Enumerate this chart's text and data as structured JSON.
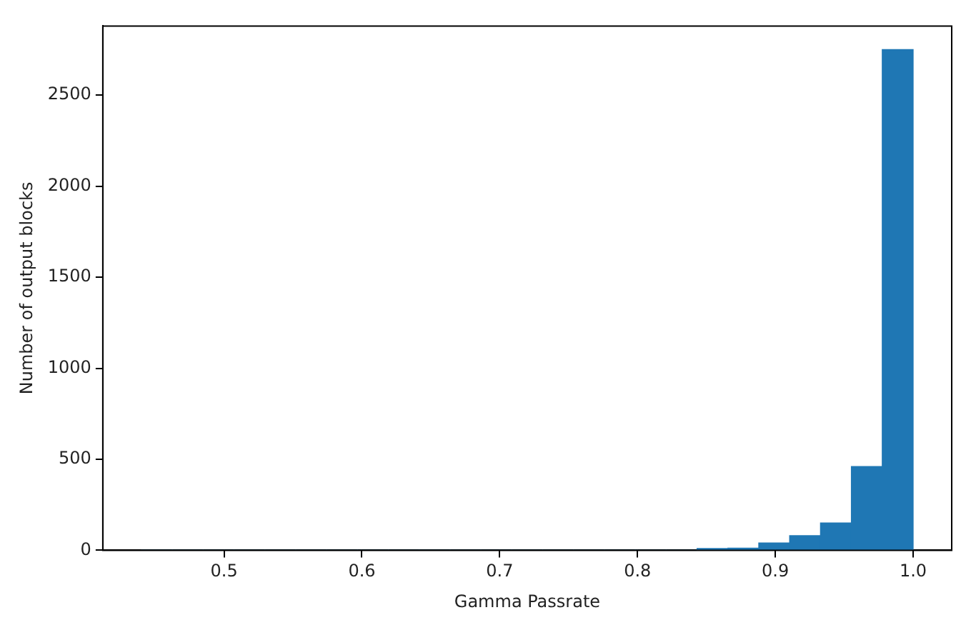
{
  "chart_data": {
    "type": "histogram",
    "xlabel": "Gamma Passrate",
    "ylabel": "Number of output blocks",
    "bins": [
      0.44,
      0.4624,
      0.4848,
      0.5072,
      0.5296,
      0.552,
      0.5744,
      0.5968,
      0.6192,
      0.6416,
      0.664,
      0.6864,
      0.7088,
      0.7312,
      0.7536,
      0.776,
      0.7984,
      0.8208,
      0.8432,
      0.8656,
      0.888,
      0.9104,
      0.9328,
      0.9552,
      0.9776,
      1.0
    ],
    "values": [
      0,
      0,
      0,
      0,
      0,
      0,
      0,
      0,
      0,
      0,
      0,
      0,
      0,
      0,
      0,
      0,
      0,
      0,
      10,
      12,
      40,
      80,
      150,
      460,
      2750
    ],
    "color": "#1f77b4",
    "xlim": [
      0.412,
      1.028
    ],
    "xticks": [
      0.5,
      0.6,
      0.7,
      0.8,
      0.9,
      {
        "value": 1.0,
        "label": "1.0"
      }
    ],
    "ylim": [
      0,
      2880
    ],
    "yticks": [
      0,
      500,
      1000,
      1500,
      2000,
      2500
    ],
    "grid": false,
    "legend": false
  }
}
